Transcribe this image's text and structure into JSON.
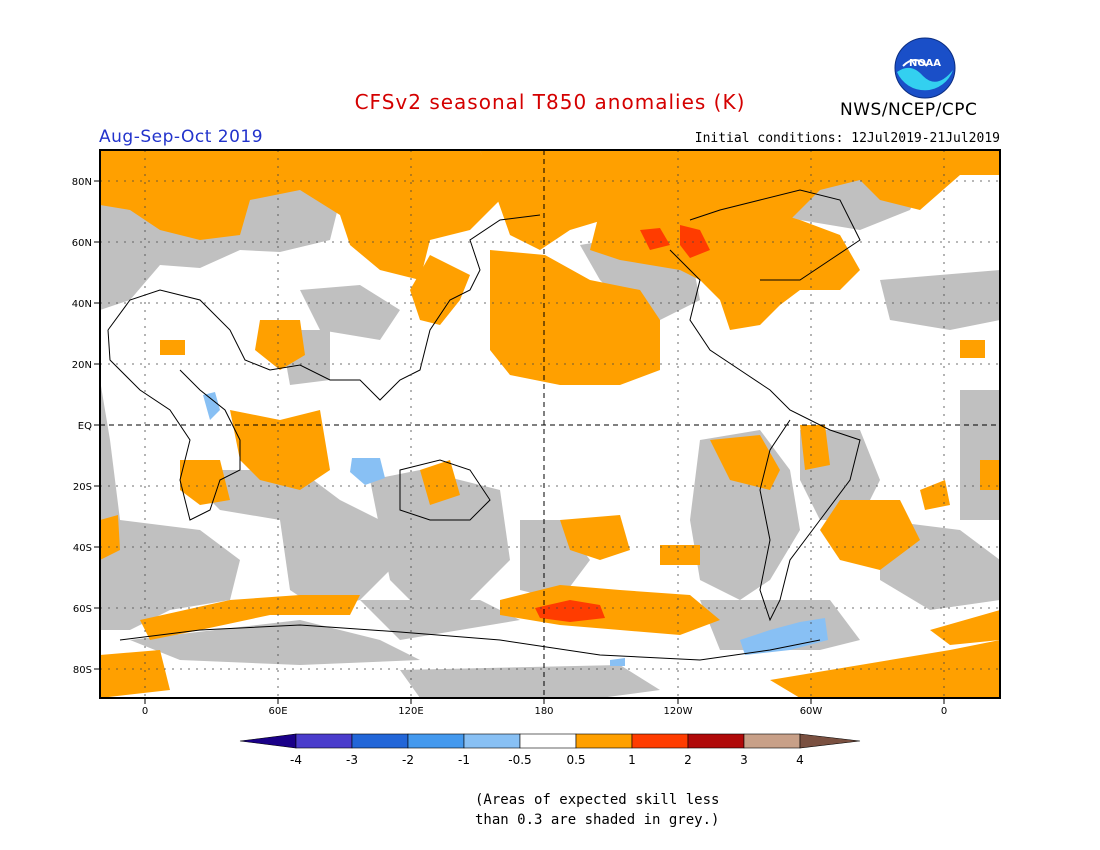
{
  "header": {
    "title": "CFSv2 seasonal T850 anomalies (K)",
    "agency": "NWS/NCEP/CPC",
    "logo_text": "NOAA",
    "season": "Aug-Sep-Oct 2019",
    "initial_conditions": "Initial conditions: 12Jul2019-21Jul2019"
  },
  "map": {
    "lat_labels": [
      "80N",
      "60N",
      "40N",
      "20N",
      "EQ",
      "20S",
      "40S",
      "60S",
      "80S"
    ],
    "lon_labels": [
      "0",
      "60E",
      "120E",
      "180",
      "120W",
      "60W",
      "0"
    ]
  },
  "legend": {
    "tick_labels": [
      "-4",
      "-3",
      "-2",
      "-1",
      "-0.5",
      "0.5",
      "1",
      "2",
      "3",
      "4"
    ],
    "colors": [
      "#1a0088",
      "#4a3ccc",
      "#2266d8",
      "#4499ee",
      "#88c0f4",
      "#ffffff",
      "#ffa000",
      "#ff3c00",
      "#b00a0a",
      "#c8a088",
      "#7a5040"
    ],
    "skill_grey": "#c0c0c0"
  },
  "footnote": {
    "line1": "(Areas of expected skill less",
    "line2": "than 0.3 are shaded in grey.)"
  }
}
